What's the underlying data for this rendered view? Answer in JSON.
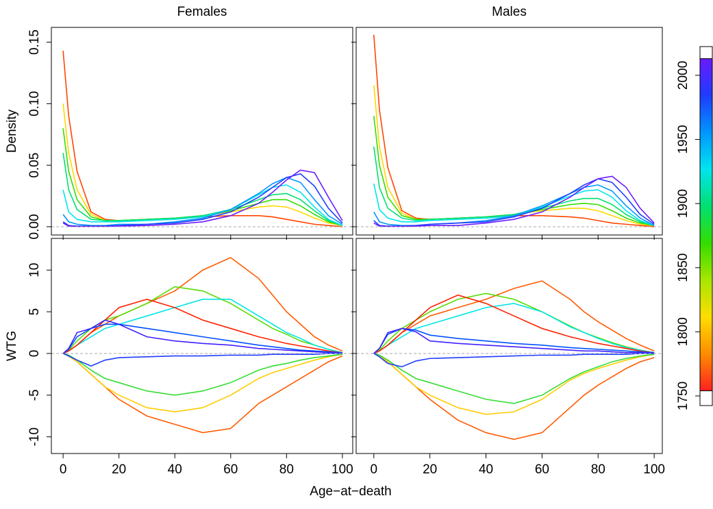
{
  "xlabel": "Age−at−death",
  "chart_data": [
    {
      "type": "line",
      "title": "Females",
      "ylabel": "Density",
      "hline": 0,
      "x": [
        0,
        2,
        5,
        10,
        15,
        20,
        30,
        40,
        50,
        60,
        70,
        75,
        80,
        85,
        90,
        95,
        100
      ],
      "xlim": [
        -4.2,
        103.7
      ],
      "xticks": [
        0,
        20,
        40,
        60,
        80,
        100
      ],
      "ylim": [
        -0.0067,
        0.162
      ],
      "yticks": [
        {
          "value": 0,
          "label": "0.00"
        },
        0.05,
        {
          "value": 0.1,
          "label": "0.10"
        },
        0.15
      ],
      "series": [
        {
          "color": "#ff4500",
          "values": [
            0.143,
            0.09,
            0.045,
            0.012,
            0.006,
            0.005,
            0.006,
            0.007,
            0.008,
            0.009,
            0.009,
            0.008,
            0.006,
            0.004,
            0.002,
            0.001,
            0.0
          ]
        },
        {
          "color": "#ffd700",
          "values": [
            0.1,
            0.06,
            0.03,
            0.01,
            0.005,
            0.005,
            0.006,
            0.007,
            0.009,
            0.012,
            0.016,
            0.017,
            0.016,
            0.012,
            0.007,
            0.003,
            0.001
          ]
        },
        {
          "color": "#33dd00",
          "values": [
            0.08,
            0.045,
            0.022,
            0.008,
            0.005,
            0.005,
            0.006,
            0.007,
            0.009,
            0.013,
            0.019,
            0.022,
            0.022,
            0.017,
            0.01,
            0.004,
            0.001
          ]
        },
        {
          "color": "#00e070",
          "values": [
            0.06,
            0.03,
            0.014,
            0.006,
            0.005,
            0.005,
            0.006,
            0.007,
            0.009,
            0.014,
            0.022,
            0.026,
            0.027,
            0.022,
            0.013,
            0.005,
            0.001
          ]
        },
        {
          "color": "#00e5ee",
          "values": [
            0.03,
            0.012,
            0.006,
            0.004,
            0.004,
            0.004,
            0.005,
            0.006,
            0.008,
            0.014,
            0.026,
            0.032,
            0.034,
            0.028,
            0.016,
            0.006,
            0.001
          ]
        },
        {
          "color": "#0096ff",
          "values": [
            0.01,
            0.004,
            0.002,
            0.001,
            0.001,
            0.002,
            0.002,
            0.004,
            0.007,
            0.014,
            0.027,
            0.035,
            0.04,
            0.036,
            0.022,
            0.009,
            0.002
          ]
        },
        {
          "color": "#1e3cff",
          "values": [
            0.004,
            0.001,
            0.0005,
            0.0005,
            0.0005,
            0.001,
            0.002,
            0.003,
            0.006,
            0.012,
            0.024,
            0.032,
            0.04,
            0.043,
            0.033,
            0.015,
            0.003
          ]
        },
        {
          "color": "#6a1aff",
          "values": [
            0.003,
            0.0005,
            0.0002,
            0.0002,
            0.0003,
            0.0005,
            0.001,
            0.002,
            0.004,
            0.009,
            0.019,
            0.028,
            0.038,
            0.046,
            0.044,
            0.024,
            0.005
          ]
        }
      ]
    },
    {
      "type": "line",
      "title": "Males",
      "hline": 0,
      "x": [
        0,
        2,
        5,
        10,
        15,
        20,
        30,
        40,
        50,
        60,
        70,
        75,
        80,
        85,
        90,
        95,
        100
      ],
      "xlim": [
        -6.3,
        102.9
      ],
      "xticks": [
        0,
        20,
        40,
        60,
        80,
        100
      ],
      "ylim": [
        -0.0067,
        0.162
      ],
      "yticks": [
        0,
        0.05,
        0.1,
        0.15
      ],
      "series": [
        {
          "color": "#ff4500",
          "values": [
            0.156,
            0.095,
            0.048,
            0.013,
            0.007,
            0.006,
            0.007,
            0.008,
            0.009,
            0.009,
            0.008,
            0.007,
            0.005,
            0.003,
            0.002,
            0.001,
            0.0
          ]
        },
        {
          "color": "#ffd700",
          "values": [
            0.115,
            0.065,
            0.032,
            0.011,
            0.006,
            0.006,
            0.007,
            0.008,
            0.01,
            0.013,
            0.015,
            0.015,
            0.013,
            0.009,
            0.005,
            0.002,
            0.001
          ]
        },
        {
          "color": "#33dd00",
          "values": [
            0.09,
            0.05,
            0.024,
            0.009,
            0.006,
            0.006,
            0.007,
            0.008,
            0.01,
            0.014,
            0.018,
            0.019,
            0.018,
            0.013,
            0.007,
            0.003,
            0.001
          ]
        },
        {
          "color": "#00e070",
          "values": [
            0.065,
            0.032,
            0.015,
            0.007,
            0.005,
            0.006,
            0.007,
            0.008,
            0.01,
            0.015,
            0.021,
            0.023,
            0.023,
            0.018,
            0.01,
            0.004,
            0.001
          ]
        },
        {
          "color": "#00e5ee",
          "values": [
            0.035,
            0.014,
            0.007,
            0.004,
            0.004,
            0.005,
            0.006,
            0.007,
            0.009,
            0.016,
            0.025,
            0.029,
            0.03,
            0.024,
            0.013,
            0.005,
            0.001
          ]
        },
        {
          "color": "#0096ff",
          "values": [
            0.012,
            0.004,
            0.002,
            0.001,
            0.001,
            0.002,
            0.003,
            0.005,
            0.009,
            0.017,
            0.027,
            0.032,
            0.034,
            0.029,
            0.017,
            0.007,
            0.001
          ]
        },
        {
          "color": "#1e3cff",
          "values": [
            0.005,
            0.001,
            0.0005,
            0.0005,
            0.001,
            0.002,
            0.003,
            0.004,
            0.008,
            0.015,
            0.027,
            0.034,
            0.039,
            0.036,
            0.024,
            0.01,
            0.002
          ]
        },
        {
          "color": "#6a1aff",
          "values": [
            0.003,
            0.0005,
            0.0002,
            0.0002,
            0.0005,
            0.001,
            0.001,
            0.003,
            0.006,
            0.012,
            0.024,
            0.032,
            0.039,
            0.041,
            0.032,
            0.015,
            0.003
          ]
        }
      ]
    },
    {
      "type": "line",
      "ylabel": "WTG",
      "hline": 0,
      "x": [
        0,
        2,
        5,
        10,
        15,
        20,
        30,
        40,
        50,
        60,
        70,
        75,
        80,
        85,
        90,
        95,
        100
      ],
      "xlim": [
        -4.2,
        103.7
      ],
      "xticks": [
        0,
        20,
        40,
        60,
        80,
        100
      ],
      "ylim": [
        -12,
        13.8
      ],
      "yticks": [
        -10,
        -5,
        0,
        5,
        10
      ],
      "series": [
        {
          "color": "#ff5a00",
          "values": [
            0,
            0.3,
            1,
            2.5,
            3.5,
            4.5,
            6,
            7.5,
            10,
            11.5,
            9,
            7,
            5,
            3.5,
            2,
            1,
            0.3
          ]
        },
        {
          "color": "#ff5a00",
          "values": [
            0,
            -0.3,
            -1,
            -2.5,
            -4,
            -5.5,
            -7.5,
            -8.5,
            -9.5,
            -9,
            -6,
            -5,
            -4,
            -3,
            -2,
            -1,
            -0.3
          ]
        },
        {
          "color": "#ffcc00",
          "values": [
            0,
            -0.3,
            -1,
            -2.5,
            -4,
            -5,
            -6.5,
            -7,
            -6.5,
            -5,
            -3,
            -2.3,
            -1.8,
            -1.3,
            -0.8,
            -0.4,
            -0.1
          ]
        },
        {
          "color": "#55dd00",
          "values": [
            0,
            0.4,
            1.5,
            3,
            4,
            4.5,
            6,
            8,
            7.5,
            6,
            4,
            3,
            2.3,
            1.5,
            1,
            0.5,
            0.1
          ]
        },
        {
          "color": "#00e5e5",
          "values": [
            0,
            0.3,
            1,
            2,
            3,
            3.5,
            4.5,
            5.5,
            6.5,
            6.5,
            4.5,
            3.5,
            2.5,
            1.8,
            1,
            0.5,
            0.1
          ]
        },
        {
          "color": "#33dd33",
          "values": [
            0,
            -0.2,
            -0.8,
            -2,
            -3,
            -3.5,
            -4.5,
            -5,
            -4.5,
            -3.5,
            -2,
            -1.5,
            -1.2,
            -0.8,
            -0.5,
            -0.3,
            -0.1
          ]
        },
        {
          "color": "#ff2000",
          "values": [
            0,
            0.3,
            1,
            2.5,
            4,
            5.5,
            6.5,
            5.5,
            4,
            3,
            2,
            1.6,
            1.2,
            0.9,
            0.6,
            0.3,
            0.1
          ]
        },
        {
          "color": "#0050ff",
          "values": [
            0,
            0.5,
            2,
            3,
            3.5,
            3.5,
            3,
            2.5,
            2,
            1.5,
            1,
            0.8,
            0.6,
            0.4,
            0.3,
            0.2,
            0.1
          ]
        },
        {
          "color": "#4020ff",
          "values": [
            0,
            0.6,
            2.5,
            3,
            4,
            3.5,
            2,
            1.5,
            1.2,
            1,
            0.6,
            0.5,
            0.4,
            0.3,
            0.2,
            0.1,
            0.05
          ]
        },
        {
          "color": "#1e3cff",
          "values": [
            0,
            -0.3,
            -0.8,
            -1.5,
            -0.8,
            -0.5,
            -0.4,
            -0.3,
            -0.3,
            -0.2,
            -0.2,
            -0.1,
            -0.1,
            -0.1,
            -0.1,
            0,
            0
          ]
        }
      ]
    },
    {
      "type": "line",
      "hline": 0,
      "x": [
        0,
        2,
        5,
        10,
        15,
        20,
        30,
        40,
        50,
        60,
        70,
        75,
        80,
        85,
        90,
        95,
        100
      ],
      "xlim": [
        -6.3,
        102.9
      ],
      "xticks": [
        0,
        20,
        40,
        60,
        80,
        100
      ],
      "ylim": [
        -12,
        13.8
      ],
      "yticks": [
        -10,
        -5,
        0,
        5,
        10
      ],
      "series": [
        {
          "color": "#ff5a00",
          "values": [
            0,
            0.3,
            1,
            2.5,
            3.5,
            4.5,
            5.5,
            6.5,
            7.8,
            8.7,
            6.5,
            5,
            3.8,
            2.8,
            1.8,
            1,
            0.3
          ]
        },
        {
          "color": "#ff5a00",
          "values": [
            0,
            -0.3,
            -1,
            -2.5,
            -4,
            -5.5,
            -8,
            -9.5,
            -10.3,
            -9.5,
            -6.5,
            -5,
            -3.8,
            -2.8,
            -1.8,
            -1,
            -0.5
          ]
        },
        {
          "color": "#ffcc00",
          "values": [
            0,
            -0.3,
            -1,
            -2.5,
            -4,
            -5,
            -6.5,
            -7.3,
            -7,
            -5.5,
            -3.2,
            -2.4,
            -1.8,
            -1.3,
            -0.8,
            -0.4,
            -0.1
          ]
        },
        {
          "color": "#55dd00",
          "values": [
            0,
            0.4,
            1.5,
            3,
            4,
            5,
            6.5,
            7.2,
            6.5,
            5,
            3.3,
            2.5,
            1.9,
            1.3,
            0.8,
            0.4,
            0.1
          ]
        },
        {
          "color": "#00e5e5",
          "values": [
            0,
            0.3,
            1,
            2,
            3,
            3.5,
            4.5,
            5.5,
            6,
            5,
            3.2,
            2.5,
            1.8,
            1.2,
            0.7,
            0.4,
            0.1
          ]
        },
        {
          "color": "#33dd33",
          "values": [
            0,
            -0.2,
            -0.8,
            -2,
            -3,
            -3.5,
            -4.5,
            -5.5,
            -6,
            -5,
            -3,
            -2.2,
            -1.6,
            -1,
            -0.6,
            -0.3,
            -0.1
          ]
        },
        {
          "color": "#ff2000",
          "values": [
            0,
            0.3,
            1,
            2.5,
            4,
            5.5,
            7,
            6,
            4.5,
            3,
            2,
            1.6,
            1.2,
            0.9,
            0.6,
            0.3,
            0.1
          ]
        },
        {
          "color": "#0050ff",
          "values": [
            0,
            0.6,
            2.3,
            3,
            2.8,
            2.2,
            1.8,
            1.5,
            1.2,
            1,
            0.7,
            0.6,
            0.5,
            0.4,
            0.3,
            0.2,
            0.1
          ]
        },
        {
          "color": "#4020ff",
          "values": [
            0,
            0.6,
            2.5,
            3,
            2.6,
            1.5,
            1.2,
            1,
            0.8,
            0.6,
            0.4,
            0.3,
            0.3,
            0.2,
            0.1,
            0.1,
            0.05
          ]
        },
        {
          "color": "#1e3cff",
          "values": [
            0,
            -0.4,
            -1.2,
            -1.6,
            -0.9,
            -0.6,
            -0.5,
            -0.4,
            -0.3,
            -0.2,
            -0.2,
            -0.1,
            -0.1,
            -0.1,
            -0.1,
            0,
            0
          ]
        }
      ]
    },
    {
      "type": "colorbar",
      "ylim": [
        1742.5,
        2022.4
      ],
      "yticks": [
        1750,
        1800,
        1850,
        1900,
        1950,
        2000
      ],
      "color_range": [
        1754,
        2013
      ],
      "colors": [
        "#ff2020",
        "#ff8c00",
        "#ffdd00",
        "#a8e600",
        "#33dd00",
        "#00e070",
        "#00e5ee",
        "#0096ff",
        "#1e3cff",
        "#6a1aff"
      ]
    }
  ]
}
